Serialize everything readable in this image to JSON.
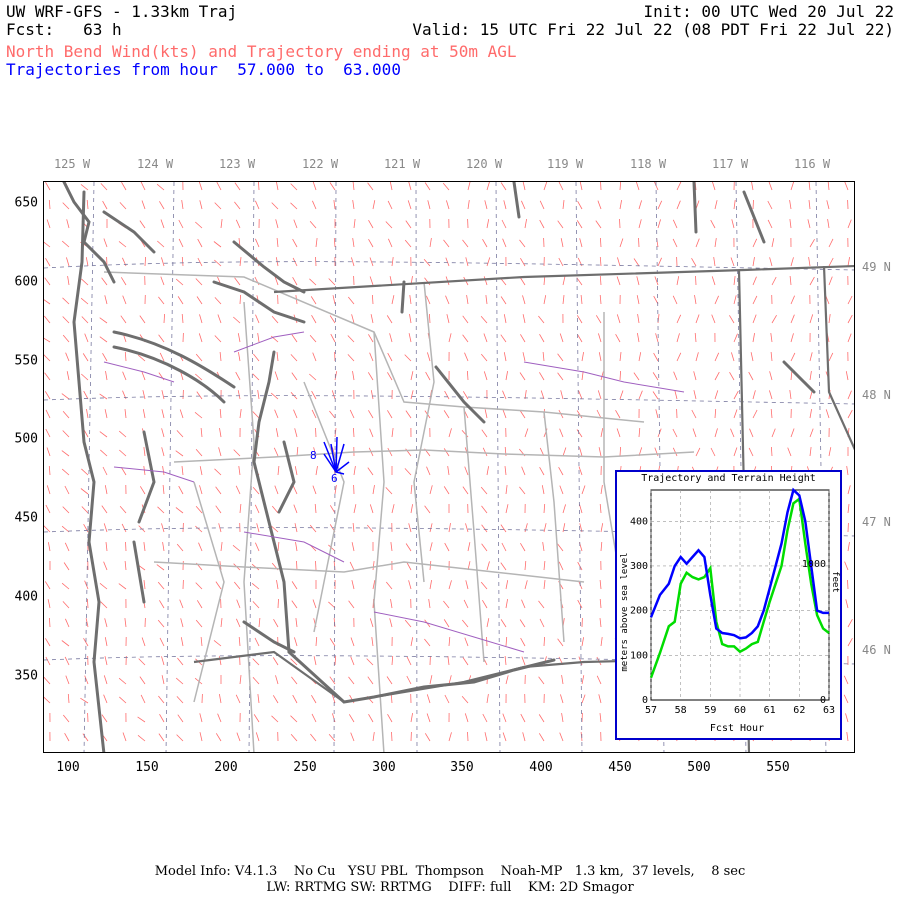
{
  "header": {
    "title_left": "UW WRF-GFS - 1.33km Traj",
    "title_right": "Init: 00 UTC Wed 20 Jul 22",
    "fcst": "Fcst:   63 h",
    "valid": "Valid: 15 UTC Fri 22 Jul 22 (08 PDT Fri 22 Jul 22)",
    "subtitle": "North Bend Wind(kts) and Trajectory ending at 50m AGL",
    "traj_range": "Trajectories from hour  57.000 to  63.000"
  },
  "map": {
    "lon_labels": [
      "125 W",
      "124 W",
      "123 W",
      "122 W",
      "121 W",
      "120 W",
      "119 W",
      "118 W",
      "117 W",
      "116 W"
    ],
    "lat_labels": [
      "49 N",
      "48 N",
      "47 N",
      "46 N"
    ],
    "y_ticks": [
      "650",
      "600",
      "550",
      "500",
      "450",
      "400",
      "350"
    ],
    "x_ticks": [
      "100",
      "150",
      "200",
      "250",
      "300",
      "350",
      "400",
      "450",
      "500",
      "550"
    ],
    "trajectory_labels": [
      "8",
      "6"
    ],
    "colors": {
      "wind_barbs": "#ff6b6b",
      "coastline": "#6e6e6e",
      "state_lines": "#b0b0b0",
      "county_lines": "#b0b0b0",
      "rivers": "#a060c0",
      "trajectory": "#0000ff",
      "graticule": "#7a7aa0"
    }
  },
  "inset": {
    "title": "Trajectory and Terrain Height",
    "ylabel_left": "meters above sea level",
    "ylabel_right": "feet",
    "xlabel": "Fcst Hour",
    "x_ticks": [
      "57",
      "58",
      "59",
      "60",
      "61",
      "62",
      "63"
    ],
    "y_ticks_left": [
      "0",
      "100",
      "200",
      "300",
      "400"
    ],
    "y_ticks_right": [
      "0",
      "1000"
    ]
  },
  "chart_data": {
    "type": "line",
    "title": "Trajectory and Terrain Height",
    "xlabel": "Fcst Hour",
    "ylabel": "meters above sea level",
    "xlim": [
      57,
      63
    ],
    "ylim": [
      0,
      470
    ],
    "x": [
      57,
      57.3,
      57.6,
      57.8,
      58,
      58.2,
      58.4,
      58.6,
      58.8,
      59,
      59.2,
      59.4,
      59.6,
      59.8,
      60,
      60.2,
      60.4,
      60.6,
      60.8,
      61,
      61.2,
      61.4,
      61.6,
      61.8,
      62,
      62.2,
      62.4,
      62.6,
      62.8,
      63
    ],
    "series": [
      {
        "name": "",
        "color": "#0000ff",
        "values": [
          185,
          235,
          260,
          300,
          320,
          305,
          320,
          335,
          320,
          235,
          160,
          150,
          148,
          145,
          138,
          140,
          150,
          165,
          200,
          250,
          300,
          350,
          420,
          470,
          458,
          400,
          300,
          200,
          195,
          195
        ]
      },
      {
        "name": "",
        "color": "#00dd00",
        "values": [
          50,
          105,
          165,
          175,
          260,
          285,
          275,
          270,
          275,
          295,
          175,
          125,
          120,
          120,
          108,
          115,
          125,
          130,
          175,
          220,
          260,
          300,
          380,
          440,
          450,
          350,
          260,
          190,
          160,
          150
        ]
      }
    ]
  },
  "footer": {
    "line1": "Model Info: V4.1.3    No Cu   YSU PBL  Thompson    Noah-MP   1.3 km,  37 levels,    8 sec",
    "line2": "LW: RRTMG SW: RRTMG    DIFF: full    KM: 2D Smagor"
  }
}
